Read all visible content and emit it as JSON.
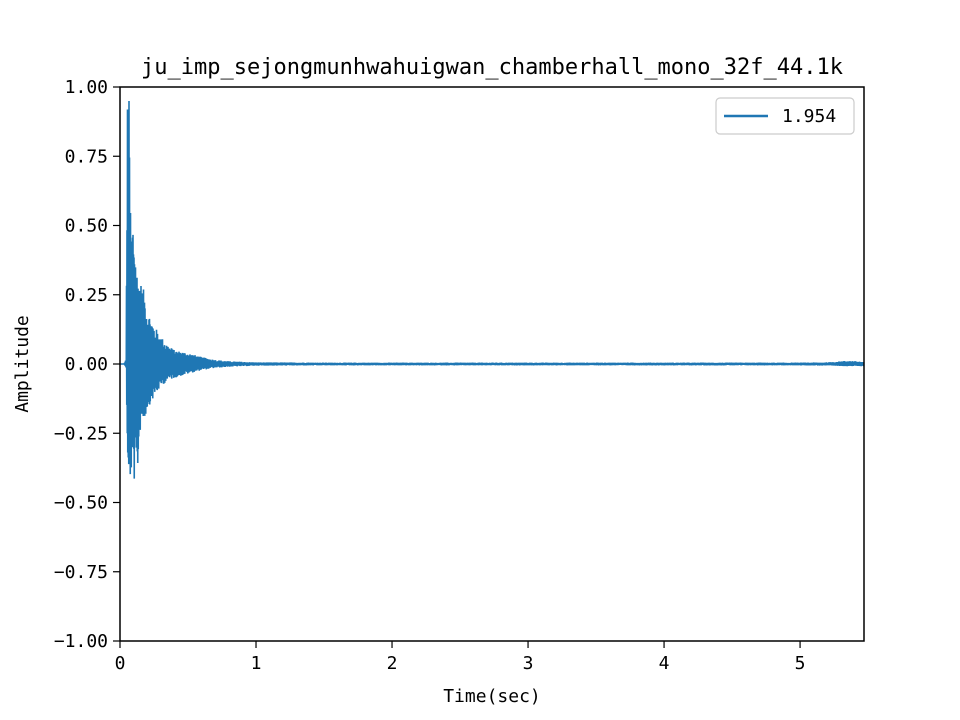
{
  "chart_data": {
    "type": "line",
    "title": "ju_imp_sejongmunhwahuigwan_chamberhall_mono_32f_44.1k",
    "xlabel": "Time(sec)",
    "ylabel": "Amplitude",
    "xlim": [
      0,
      5.47
    ],
    "ylim": [
      -1.0,
      1.0
    ],
    "xticks": [
      0,
      1,
      2,
      3,
      4,
      5
    ],
    "xtick_labels": [
      "0",
      "1",
      "2",
      "3",
      "4",
      "5"
    ],
    "yticks": [
      1.0,
      0.75,
      0.5,
      0.25,
      0.0,
      -0.25,
      -0.5,
      -0.75,
      -1.0
    ],
    "ytick_labels": [
      "1.00",
      "0.75",
      "0.50",
      "0.25",
      "0.00",
      "−0.25",
      "−0.50",
      "−0.75",
      "−1.00"
    ],
    "grid": false,
    "legend_position": "top-right",
    "series": [
      {
        "name": "1.954",
        "color": "#1f77b4",
        "envelope": {
          "x": [
            0.0,
            0.03,
            0.045,
            0.055,
            0.065,
            0.08,
            0.1,
            0.12,
            0.15,
            0.18,
            0.2,
            0.25,
            0.3,
            0.35,
            0.4,
            0.5,
            0.6,
            0.7,
            0.8,
            0.9,
            1.0,
            1.5,
            2.0,
            3.0,
            4.0,
            5.0,
            5.2,
            5.35,
            5.47
          ],
          "upper": [
            0.0,
            0.0,
            0.02,
            1.0,
            1.0,
            0.5,
            0.55,
            0.35,
            0.3,
            0.26,
            0.2,
            0.14,
            0.1,
            0.07,
            0.05,
            0.04,
            0.025,
            0.015,
            0.01,
            0.008,
            0.006,
            0.005,
            0.005,
            0.005,
            0.005,
            0.005,
            0.006,
            0.012,
            0.008
          ],
          "lower": [
            0.0,
            0.0,
            -0.02,
            -0.51,
            -0.45,
            -0.4,
            -0.42,
            -0.45,
            -0.22,
            -0.2,
            -0.16,
            -0.12,
            -0.08,
            -0.06,
            -0.05,
            -0.035,
            -0.022,
            -0.014,
            -0.01,
            -0.008,
            -0.006,
            -0.005,
            -0.005,
            -0.005,
            -0.005,
            -0.005,
            -0.006,
            -0.008,
            -0.008
          ]
        }
      }
    ]
  }
}
